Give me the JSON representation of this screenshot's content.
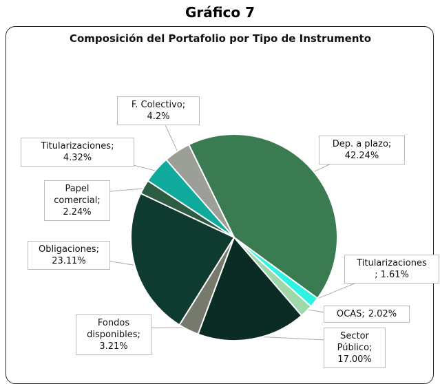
{
  "heading": "Gráfico 7",
  "chart_data": {
    "type": "pie",
    "title": "Composición del Portafolio por Tipo de Instrumento",
    "categories": [
      "Dep. a plazo;",
      "Titularizaciones",
      "OCAS;",
      "Sector Público;",
      "Fondos disponibles;",
      "Obligaciones;",
      "Papel comercial;",
      "Titularizaciones;",
      "F. Colectivo;"
    ],
    "values": [
      42.24,
      1.61,
      2.02,
      17.0,
      3.21,
      23.11,
      2.24,
      4.32,
      4.2
    ],
    "value_labels": [
      "42.24%",
      "; 1.61%",
      "2.02%",
      "17.00%",
      "3.21%",
      "23.11%",
      "2.24%",
      "4.32%",
      "4.2%"
    ],
    "colors": [
      "#3b7b52",
      "#2ff2e2",
      "#9ed8a9",
      "#0a2c25",
      "#757a6d",
      "#0e3a30",
      "#2c5d42",
      "#0faa9c",
      "#9c9f97"
    ]
  }
}
